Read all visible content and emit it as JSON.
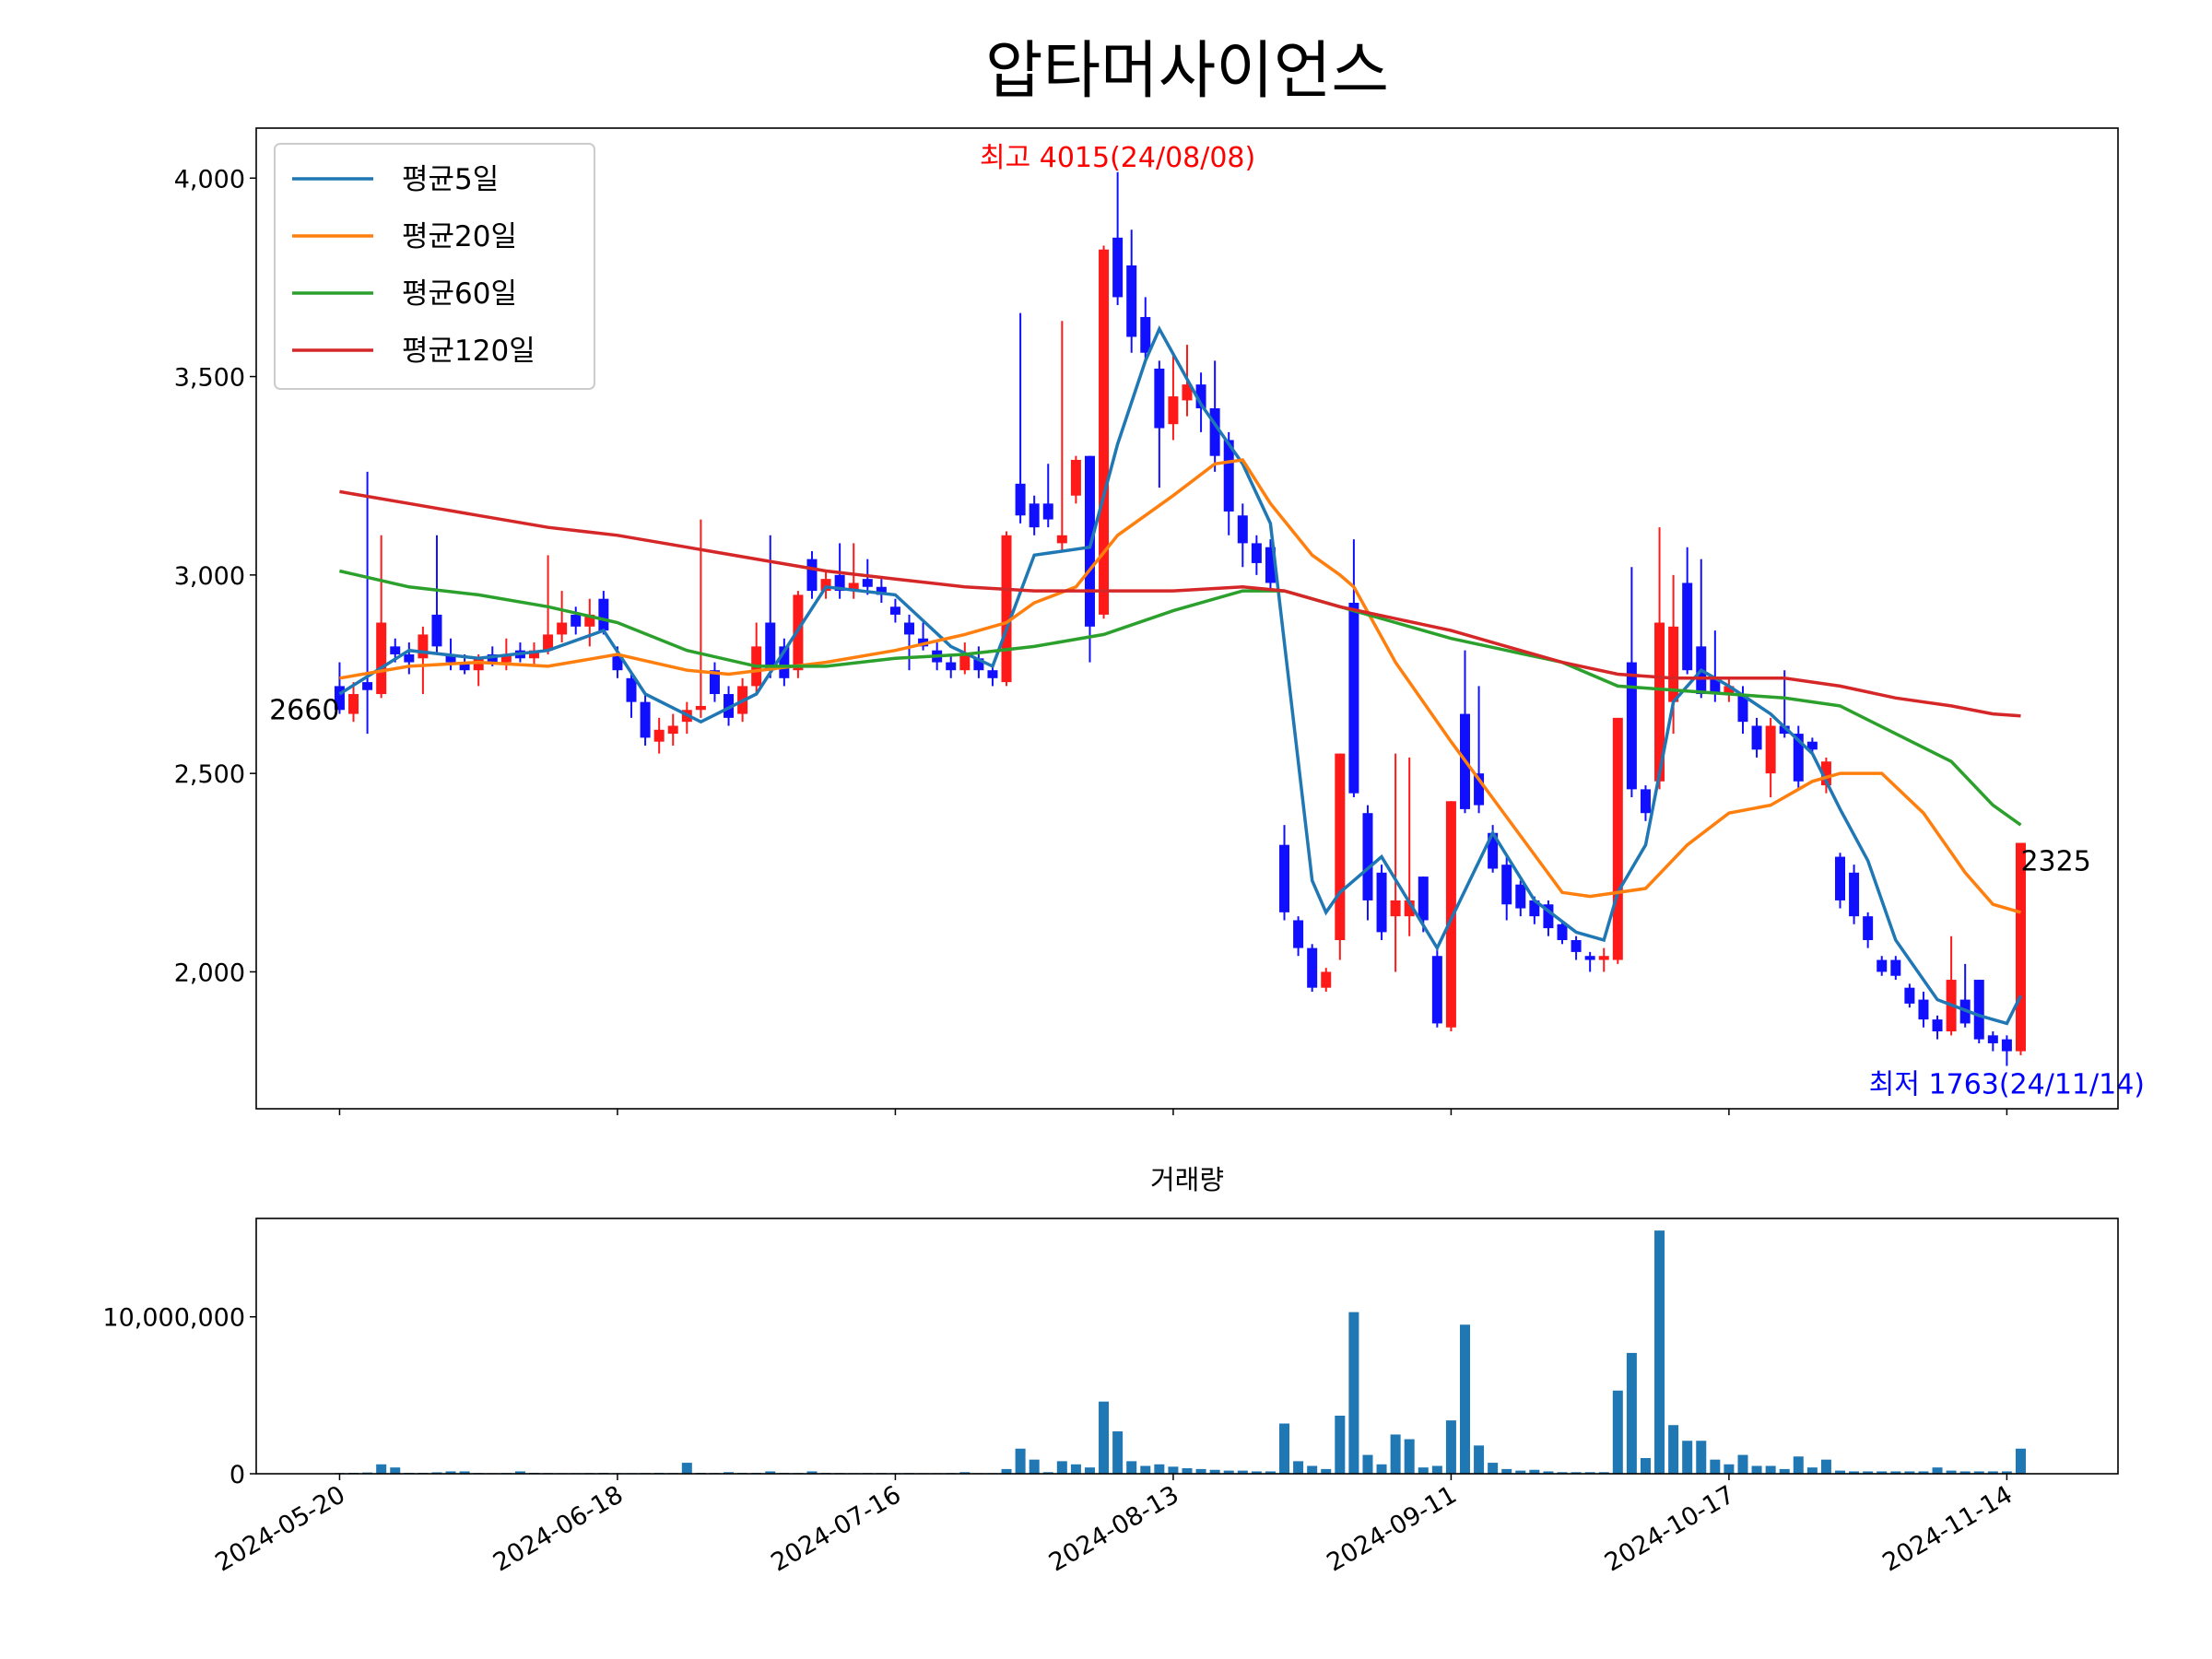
{
  "chart_data": [
    {
      "type": "candlestick",
      "title": "압타머사이언스",
      "up_color": "#ff1a1a",
      "down_color": "#1010ff",
      "xlim": [
        -6,
        128
      ],
      "ylim": [
        1655,
        4126
      ],
      "yticks": [
        {
          "value": 2000,
          "label": "2,000"
        },
        {
          "value": 2500,
          "label": "2,500"
        },
        {
          "value": 3000,
          "label": "3,000"
        },
        {
          "value": 3500,
          "label": "3,500"
        },
        {
          "value": 4000,
          "label": "4,000"
        }
      ],
      "legend": "upper left",
      "candles": [
        [
          2720,
          2780,
          2650,
          2660
        ],
        [
          2650,
          2730,
          2630,
          2700
        ],
        [
          2730,
          3260,
          2600,
          2710
        ],
        [
          2700,
          3100,
          2690,
          2880
        ],
        [
          2820,
          2840,
          2780,
          2800
        ],
        [
          2800,
          2830,
          2750,
          2780
        ],
        [
          2790,
          2870,
          2700,
          2850
        ],
        [
          2900,
          3100,
          2800,
          2820
        ],
        [
          2800,
          2840,
          2760,
          2780
        ],
        [
          2780,
          2800,
          2750,
          2760
        ],
        [
          2760,
          2800,
          2720,
          2790
        ],
        [
          2800,
          2820,
          2770,
          2780
        ],
        [
          2780,
          2840,
          2760,
          2800
        ],
        [
          2810,
          2830,
          2780,
          2790
        ],
        [
          2790,
          2830,
          2770,
          2810
        ],
        [
          2810,
          3050,
          2800,
          2850
        ],
        [
          2850,
          2960,
          2830,
          2880
        ],
        [
          2900,
          2920,
          2850,
          2870
        ],
        [
          2870,
          2940,
          2820,
          2900
        ],
        [
          2940,
          2960,
          2850,
          2860
        ],
        [
          2800,
          2820,
          2740,
          2760
        ],
        [
          2740,
          2750,
          2640,
          2680
        ],
        [
          2680,
          2700,
          2570,
          2590
        ],
        [
          2580,
          2640,
          2550,
          2610
        ],
        [
          2600,
          2650,
          2570,
          2620
        ],
        [
          2630,
          2680,
          2600,
          2660
        ],
        [
          2660,
          3140,
          2640,
          2670
        ],
        [
          2760,
          2780,
          2680,
          2700
        ],
        [
          2700,
          2720,
          2620,
          2640
        ],
        [
          2650,
          2740,
          2630,
          2720
        ],
        [
          2720,
          2880,
          2700,
          2820
        ],
        [
          2880,
          3100,
          2740,
          2760
        ],
        [
          2820,
          2840,
          2720,
          2740
        ],
        [
          2760,
          2960,
          2740,
          2950
        ],
        [
          3040,
          3060,
          2940,
          2960
        ],
        [
          2960,
          3010,
          2940,
          2990
        ],
        [
          3000,
          3080,
          2940,
          2960
        ],
        [
          2960,
          3080,
          2940,
          2980
        ],
        [
          2990,
          3040,
          2950,
          2970
        ],
        [
          2970,
          2990,
          2930,
          2950
        ],
        [
          2920,
          2940,
          2880,
          2900
        ],
        [
          2880,
          2900,
          2760,
          2850
        ],
        [
          2840,
          2880,
          2810,
          2820
        ],
        [
          2810,
          2830,
          2760,
          2780
        ],
        [
          2780,
          2800,
          2740,
          2760
        ],
        [
          2760,
          2830,
          2750,
          2800
        ],
        [
          2790,
          2820,
          2740,
          2760
        ],
        [
          2760,
          2770,
          2720,
          2740
        ],
        [
          2730,
          3110,
          2720,
          3100
        ],
        [
          3230,
          3660,
          3130,
          3150
        ],
        [
          3180,
          3200,
          3100,
          3120
        ],
        [
          3180,
          3280,
          3120,
          3140
        ],
        [
          3080,
          3640,
          3060,
          3100
        ],
        [
          3200,
          3300,
          3180,
          3290
        ],
        [
          3300,
          3300,
          2780,
          2870
        ],
        [
          2900,
          3830,
          2890,
          3820
        ],
        [
          3850,
          4015,
          3680,
          3700
        ],
        [
          3780,
          3870,
          3560,
          3600
        ],
        [
          3650,
          3700,
          3540,
          3560
        ],
        [
          3520,
          3540,
          3220,
          3370
        ],
        [
          3380,
          3560,
          3340,
          3450
        ],
        [
          3440,
          3580,
          3400,
          3480
        ],
        [
          3480,
          3510,
          3360,
          3420
        ],
        [
          3420,
          3540,
          3260,
          3300
        ],
        [
          3340,
          3360,
          3100,
          3160
        ],
        [
          3150,
          3180,
          3020,
          3080
        ],
        [
          3080,
          3100,
          3000,
          3030
        ],
        [
          3070,
          3090,
          2960,
          2980
        ],
        [
          2320,
          2370,
          2130,
          2150
        ],
        [
          2130,
          2140,
          2040,
          2060
        ],
        [
          2060,
          2070,
          1950,
          1960
        ],
        [
          1960,
          2010,
          1950,
          2000
        ],
        [
          2080,
          2550,
          2030,
          2550
        ],
        [
          2930,
          3090,
          2440,
          2450
        ],
        [
          2400,
          2420,
          2130,
          2180
        ],
        [
          2250,
          2270,
          2080,
          2100
        ],
        [
          2140,
          2550,
          2000,
          2180
        ],
        [
          2140,
          2540,
          2090,
          2180
        ],
        [
          2240,
          2240,
          2100,
          2130
        ],
        [
          2040,
          2060,
          1860,
          1870
        ],
        [
          1860,
          2430,
          1850,
          2430
        ],
        [
          2650,
          2810,
          2400,
          2410
        ],
        [
          2500,
          2720,
          2400,
          2420
        ],
        [
          2350,
          2370,
          2250,
          2260
        ],
        [
          2270,
          2290,
          2130,
          2170
        ],
        [
          2220,
          2230,
          2140,
          2160
        ],
        [
          2180,
          2190,
          2120,
          2140
        ],
        [
          2170,
          2180,
          2090,
          2110
        ],
        [
          2120,
          2130,
          2070,
          2080
        ],
        [
          2080,
          2090,
          2030,
          2050
        ],
        [
          2040,
          2050,
          2000,
          2030
        ],
        [
          2030,
          2060,
          2000,
          2040
        ],
        [
          2030,
          2640,
          2020,
          2640
        ],
        [
          2780,
          3020,
          2440,
          2460
        ],
        [
          2460,
          2470,
          2380,
          2400
        ],
        [
          2480,
          3120,
          2460,
          2880
        ],
        [
          2680,
          3000,
          2600,
          2870
        ],
        [
          2980,
          3070,
          2750,
          2760
        ],
        [
          2820,
          3040,
          2690,
          2700
        ],
        [
          2740,
          2860,
          2680,
          2700
        ],
        [
          2700,
          2740,
          2680,
          2720
        ],
        [
          2700,
          2720,
          2600,
          2630
        ],
        [
          2620,
          2640,
          2540,
          2560
        ],
        [
          2500,
          2640,
          2440,
          2620
        ],
        [
          2620,
          2760,
          2590,
          2600
        ],
        [
          2600,
          2620,
          2460,
          2480
        ],
        [
          2580,
          2590,
          2550,
          2560
        ],
        [
          2470,
          2540,
          2450,
          2530
        ],
        [
          2290,
          2300,
          2160,
          2180
        ],
        [
          2250,
          2270,
          2120,
          2140
        ],
        [
          2140,
          2150,
          2060,
          2080
        ],
        [
          2030,
          2040,
          1990,
          2000
        ],
        [
          2030,
          2040,
          1980,
          1990
        ],
        [
          1960,
          1970,
          1910,
          1920
        ],
        [
          1930,
          1950,
          1860,
          1880
        ],
        [
          1880,
          1890,
          1830,
          1850
        ],
        [
          1850,
          2090,
          1840,
          1980
        ],
        [
          1930,
          2020,
          1860,
          1870
        ],
        [
          1980,
          1980,
          1820,
          1830
        ],
        [
          1840,
          1850,
          1800,
          1820
        ],
        [
          1830,
          1840,
          1763,
          1800
        ],
        [
          1800,
          2325,
          1790,
          2325
        ]
      ],
      "series": [
        {
          "name": "평균5일",
          "color": "#1f77b4",
          "x": [
            0,
            5,
            10,
            15,
            19,
            22,
            26,
            30,
            35,
            40,
            44,
            47,
            50,
            54,
            56,
            58,
            59,
            62,
            65,
            67,
            70,
            71,
            72,
            75,
            79,
            83,
            86,
            89,
            91,
            92,
            94,
            96,
            98,
            100,
            103,
            106,
            108,
            110,
            112,
            115,
            118,
            120,
            121
          ],
          "values": [
            2700,
            2810,
            2790,
            2810,
            2860,
            2700,
            2630,
            2700,
            2970,
            2950,
            2820,
            2770,
            3050,
            3070,
            3330,
            3540,
            3620,
            3430,
            3280,
            3130,
            2230,
            2150,
            2200,
            2290,
            2060,
            2350,
            2180,
            2100,
            2080,
            2200,
            2320,
            2680,
            2760,
            2720,
            2650,
            2550,
            2410,
            2280,
            2080,
            1930,
            1890,
            1870,
            1940
          ]
        },
        {
          "name": "평균20일",
          "color": "#ff7f0e",
          "x": [
            0,
            5,
            10,
            15,
            20,
            25,
            28,
            35,
            40,
            45,
            48,
            50,
            53,
            56,
            60,
            63,
            65,
            67,
            70,
            72,
            73,
            76,
            80,
            84,
            88,
            90,
            94,
            97,
            100,
            103,
            106,
            108,
            111,
            114,
            117,
            119,
            121
          ],
          "values": [
            2740,
            2770,
            2780,
            2770,
            2800,
            2760,
            2750,
            2780,
            2810,
            2850,
            2880,
            2930,
            2970,
            3100,
            3200,
            3280,
            3290,
            3180,
            3050,
            3000,
            2970,
            2780,
            2580,
            2390,
            2200,
            2190,
            2210,
            2320,
            2400,
            2420,
            2480,
            2500,
            2500,
            2400,
            2250,
            2170,
            2150
          ]
        },
        {
          "name": "평균60일",
          "color": "#2ca02c",
          "x": [
            0,
            5,
            10,
            15,
            20,
            25,
            30,
            35,
            40,
            45,
            50,
            55,
            60,
            65,
            68,
            72,
            76,
            80,
            84,
            88,
            92,
            96,
            100,
            104,
            108,
            112,
            116,
            119,
            121
          ],
          "values": [
            3010,
            2970,
            2950,
            2920,
            2880,
            2810,
            2770,
            2770,
            2790,
            2800,
            2820,
            2850,
            2910,
            2960,
            2960,
            2920,
            2880,
            2840,
            2810,
            2780,
            2720,
            2710,
            2700,
            2690,
            2670,
            2600,
            2530,
            2420,
            2370
          ]
        },
        {
          "name": "평균120일",
          "color": "#d62728",
          "x": [
            0,
            5,
            10,
            15,
            20,
            25,
            30,
            35,
            40,
            45,
            50,
            55,
            60,
            65,
            68,
            72,
            76,
            80,
            84,
            88,
            92,
            96,
            100,
            104,
            108,
            112,
            116,
            119,
            121
          ],
          "values": [
            3210,
            3180,
            3150,
            3120,
            3100,
            3070,
            3040,
            3010,
            2990,
            2970,
            2960,
            2960,
            2960,
            2970,
            2960,
            2920,
            2890,
            2860,
            2820,
            2780,
            2750,
            2740,
            2740,
            2740,
            2720,
            2690,
            2670,
            2650,
            2645
          ]
        }
      ],
      "annotations": [
        {
          "text": "최고 4015(24/08/08)",
          "x": 56,
          "y": 4015,
          "color": "#ff0000",
          "ha": "center",
          "va": "bottom"
        },
        {
          "text": "최저 1763(24/11/14)",
          "x": 120,
          "y": 1763,
          "color": "#0000ff",
          "ha": "center",
          "va": "top"
        },
        {
          "text": "2660",
          "x": 0,
          "y": 2660,
          "color": "#000000",
          "ha": "right",
          "va": "center"
        },
        {
          "text": "2325",
          "x": 121,
          "y": 2325,
          "color": "#000000",
          "ha": "left",
          "va": "top"
        }
      ]
    },
    {
      "type": "bar",
      "title": "거래량",
      "color": "#1f77b4",
      "xlim": [
        -6,
        128
      ],
      "ylim": [
        0,
        16270000
      ],
      "yticks": [
        0,
        {
          "value": 10000000,
          "label": "10,000,000"
        }
      ],
      "xticks": [
        {
          "value": 0,
          "label": "2024-05-20"
        },
        {
          "value": 20,
          "label": "2024-06-18"
        },
        {
          "value": 40,
          "label": "2024-07-16"
        },
        {
          "value": 60,
          "label": "2024-08-13"
        },
        {
          "value": 80,
          "label": "2024-09-11"
        },
        {
          "value": 100,
          "label": "2024-10-17"
        },
        {
          "value": 120,
          "label": "2024-11-14"
        }
      ],
      "values": [
        50000,
        60000,
        80000,
        600000,
        400000,
        60000,
        60000,
        90000,
        150000,
        150000,
        50000,
        40000,
        50000,
        150000,
        60000,
        50000,
        40000,
        40000,
        50000,
        60000,
        40000,
        40000,
        50000,
        60000,
        50000,
        700000,
        60000,
        50000,
        100000,
        60000,
        60000,
        150000,
        60000,
        50000,
        150000,
        60000,
        50000,
        40000,
        50000,
        50000,
        40000,
        50000,
        40000,
        40000,
        50000,
        100000,
        40000,
        40000,
        300000,
        1600000,
        900000,
        100000,
        800000,
        600000,
        400000,
        4600000,
        2700000,
        800000,
        500000,
        600000,
        450000,
        350000,
        300000,
        250000,
        200000,
        200000,
        150000,
        150000,
        3200000,
        800000,
        500000,
        300000,
        3700000,
        10300000,
        1200000,
        600000,
        2500000,
        2200000,
        400000,
        500000,
        3400000,
        9500000,
        1800000,
        700000,
        300000,
        200000,
        250000,
        150000,
        100000,
        100000,
        100000,
        100000,
        5300000,
        7700000,
        1000000,
        15500000,
        3100000,
        2100000,
        2100000,
        900000,
        600000,
        1200000,
        500000,
        500000,
        300000,
        1100000,
        400000,
        900000,
        200000,
        150000,
        150000,
        150000,
        150000,
        150000,
        150000,
        400000,
        200000,
        150000,
        150000,
        150000,
        150000,
        1600000
      ]
    }
  ]
}
